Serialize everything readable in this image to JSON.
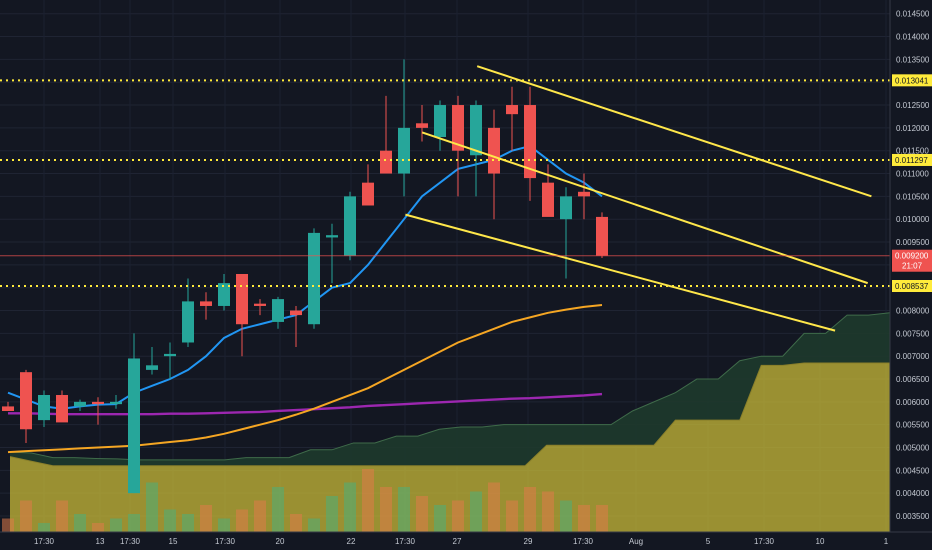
{
  "chart_data": {
    "type": "candlestick",
    "ylim": [
      0.00315,
      0.0148
    ],
    "y_ticks": [
      "0.014500",
      "0.014000",
      "0.013500",
      "0.013000",
      "0.012500",
      "0.012000",
      "0.011500",
      "0.011000",
      "0.010500",
      "0.010000",
      "0.009500",
      "0.009000",
      "0.008500",
      "0.008000",
      "0.007500",
      "0.007000",
      "0.006500",
      "0.006000",
      "0.005500",
      "0.005000",
      "0.004500",
      "0.004000",
      "0.003500"
    ],
    "x_ticks": [
      "17:30",
      "13",
      "17:30",
      "15",
      "17:30",
      "20",
      "22",
      "17:30",
      "27",
      "29",
      "17:30",
      "Aug",
      "5",
      "17:30",
      "10",
      "1"
    ],
    "horizontal_levels": [
      {
        "value": 0.013041,
        "label": "0.013041"
      },
      {
        "value": 0.011297,
        "label": "0.011297"
      },
      {
        "value": 0.008537,
        "label": "0.008537"
      }
    ],
    "current_price": {
      "value": "0.009200",
      "countdown": "21:07"
    },
    "candles": [
      {
        "o": 0.0059,
        "h": 0.006,
        "l": 0.00585,
        "c": 0.0058
      },
      {
        "o": 0.00665,
        "h": 0.0067,
        "l": 0.0051,
        "c": 0.0054
      },
      {
        "o": 0.0056,
        "h": 0.00625,
        "l": 0.00545,
        "c": 0.00615
      },
      {
        "o": 0.00615,
        "h": 0.00625,
        "l": 0.0056,
        "c": 0.00555
      },
      {
        "o": 0.0059,
        "h": 0.00605,
        "l": 0.0058,
        "c": 0.006
      },
      {
        "o": 0.006,
        "h": 0.0061,
        "l": 0.0055,
        "c": 0.00595
      },
      {
        "o": 0.00595,
        "h": 0.00615,
        "l": 0.00585,
        "c": 0.006
      },
      {
        "o": 0.004,
        "h": 0.0075,
        "l": 0.004,
        "c": 0.00695
      },
      {
        "o": 0.0067,
        "h": 0.0072,
        "l": 0.0066,
        "c": 0.0068
      },
      {
        "o": 0.007,
        "h": 0.0073,
        "l": 0.0065,
        "c": 0.00705
      },
      {
        "o": 0.0073,
        "h": 0.0087,
        "l": 0.0072,
        "c": 0.0082
      },
      {
        "o": 0.0082,
        "h": 0.0084,
        "l": 0.0078,
        "c": 0.0081
      },
      {
        "o": 0.0081,
        "h": 0.0088,
        "l": 0.008,
        "c": 0.0086
      },
      {
        "o": 0.0088,
        "h": 0.0088,
        "l": 0.007,
        "c": 0.0077
      },
      {
        "o": 0.00815,
        "h": 0.00825,
        "l": 0.0079,
        "c": 0.0081
      },
      {
        "o": 0.00775,
        "h": 0.0083,
        "l": 0.0076,
        "c": 0.00825
      },
      {
        "o": 0.008,
        "h": 0.0081,
        "l": 0.0072,
        "c": 0.0079
      },
      {
        "o": 0.0077,
        "h": 0.0098,
        "l": 0.0076,
        "c": 0.0097
      },
      {
        "o": 0.0096,
        "h": 0.0099,
        "l": 0.0086,
        "c": 0.00965
      },
      {
        "o": 0.0092,
        "h": 0.0106,
        "l": 0.0091,
        "c": 0.0105
      },
      {
        "o": 0.0108,
        "h": 0.0112,
        "l": 0.0103,
        "c": 0.0103
      },
      {
        "o": 0.0115,
        "h": 0.0127,
        "l": 0.011,
        "c": 0.011
      },
      {
        "o": 0.011,
        "h": 0.0135,
        "l": 0.0105,
        "c": 0.012
      },
      {
        "o": 0.0121,
        "h": 0.0125,
        "l": 0.0117,
        "c": 0.012
      },
      {
        "o": 0.0118,
        "h": 0.0126,
        "l": 0.0115,
        "c": 0.0125
      },
      {
        "o": 0.0125,
        "h": 0.0127,
        "l": 0.0105,
        "c": 0.0115
      },
      {
        "o": 0.0114,
        "h": 0.0126,
        "l": 0.0105,
        "c": 0.0125
      },
      {
        "o": 0.012,
        "h": 0.0124,
        "l": 0.01,
        "c": 0.011
      },
      {
        "o": 0.0125,
        "h": 0.0129,
        "l": 0.0115,
        "c": 0.0123
      },
      {
        "o": 0.0125,
        "h": 0.0129,
        "l": 0.0104,
        "c": 0.0109
      },
      {
        "o": 0.0108,
        "h": 0.0112,
        "l": 0.0101,
        "c": 0.01005
      },
      {
        "o": 0.01,
        "h": 0.0107,
        "l": 0.0087,
        "c": 0.0105
      },
      {
        "o": 0.0106,
        "h": 0.011,
        "l": 0.01,
        "c": 0.0105
      },
      {
        "o": 0.01005,
        "h": 0.01015,
        "l": 0.00915,
        "c": 0.0092
      }
    ],
    "ema_fast": [
      0.0062,
      0.00605,
      0.0059,
      0.00585,
      0.0059,
      0.00594,
      0.00595,
      0.0062,
      0.00635,
      0.0065,
      0.0067,
      0.007,
      0.0074,
      0.0076,
      0.0077,
      0.0078,
      0.0079,
      0.0082,
      0.0085,
      0.0086,
      0.009,
      0.0095,
      0.01,
      0.0105,
      0.0108,
      0.0111,
      0.0112,
      0.0113,
      0.0115,
      0.0116,
      0.0113,
      0.011,
      0.0108,
      0.0105
    ],
    "ma_orange": [
      0.0049,
      0.00492,
      0.00494,
      0.00496,
      0.00498,
      0.005,
      0.00502,
      0.00504,
      0.00508,
      0.00512,
      0.00516,
      0.00522,
      0.0053,
      0.0054,
      0.0055,
      0.0056,
      0.00572,
      0.00585,
      0.006,
      0.00615,
      0.0063,
      0.0065,
      0.0067,
      0.0069,
      0.0071,
      0.0073,
      0.00745,
      0.0076,
      0.00775,
      0.00785,
      0.00795,
      0.00802,
      0.00808,
      0.00812
    ],
    "ma_purple": [
      0.00575,
      0.00575,
      0.00574,
      0.00573,
      0.00573,
      0.00573,
      0.00573,
      0.00573,
      0.00573,
      0.00574,
      0.00574,
      0.00575,
      0.00576,
      0.00577,
      0.00578,
      0.0058,
      0.00582,
      0.00584,
      0.00586,
      0.00588,
      0.00591,
      0.00593,
      0.00595,
      0.00597,
      0.00599,
      0.00601,
      0.00603,
      0.00605,
      0.00607,
      0.00608,
      0.0061,
      0.00612,
      0.00614,
      0.00617
    ],
    "cloud_lead_a": [
      0.0049,
      0.00488,
      0.00478,
      0.00478,
      0.00476,
      0.00475,
      0.00473,
      0.00473,
      0.00473,
      0.00473,
      0.00473,
      0.00478,
      0.00478,
      0.00478,
      0.00495,
      0.00495,
      0.0051,
      0.0051,
      0.00525,
      0.00525,
      0.0054,
      0.00545,
      0.00545,
      0.0055,
      0.0055,
      0.0055,
      0.0055,
      0.0055,
      0.0055,
      0.0058,
      0.006,
      0.0062,
      0.0065,
      0.0065,
      0.0069,
      0.007,
      0.007,
      0.0075,
      0.0075,
      0.0079,
      0.0079,
      0.00795
    ],
    "cloud_lead_b": [
      0.0048,
      0.0047,
      0.0046,
      0.0046,
      0.0046,
      0.0046,
      0.0046,
      0.0046,
      0.0046,
      0.0046,
      0.0046,
      0.0046,
      0.0046,
      0.0046,
      0.0046,
      0.0046,
      0.0046,
      0.0046,
      0.0046,
      0.0046,
      0.0046,
      0.0046,
      0.0046,
      0.0046,
      0.0046,
      0.00505,
      0.00505,
      0.00505,
      0.00505,
      0.00505,
      0.00505,
      0.0056,
      0.0056,
      0.0056,
      0.0056,
      0.0068,
      0.0068,
      0.00685,
      0.00685,
      0.00685,
      0.00685,
      0.00685
    ],
    "volume": [
      0.15,
      0.35,
      0.1,
      0.35,
      0.2,
      0.1,
      0.15,
      0.2,
      0.55,
      0.25,
      0.2,
      0.3,
      0.15,
      0.25,
      0.35,
      0.5,
      0.2,
      0.15,
      0.4,
      0.55,
      0.7,
      0.5,
      0.5,
      0.4,
      0.3,
      0.35,
      0.45,
      0.55,
      0.35,
      0.5,
      0.45,
      0.35,
      0.3,
      0.3
    ],
    "channels": [
      {
        "x1": 0.512,
        "y1": 0.01335,
        "x2": 0.935,
        "y2": 0.0105
      },
      {
        "x1": 0.453,
        "y1": 0.0119,
        "x2": 0.931,
        "y2": 0.0086
      },
      {
        "x1": 0.435,
        "y1": 0.0101,
        "x2": 0.896,
        "y2": 0.00756
      }
    ],
    "colors": {
      "background": "#131722",
      "up": "#26a69a",
      "down": "#ef5350",
      "ema": "#2196f3",
      "ma_orange": "#f5a623",
      "ma_purple": "#9c27b0",
      "level": "#ffeb3b",
      "channel": "#ffe74a",
      "cloud_fill": "#c8b938",
      "cloud_green": "#1e3a2c",
      "current_line": "#ef5350"
    }
  }
}
